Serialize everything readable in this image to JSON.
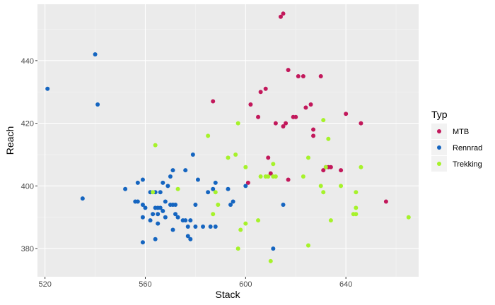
{
  "chart_data": {
    "type": "scatter",
    "title": "",
    "xlabel": "Stack",
    "ylabel": "Reach",
    "xlim": [
      517,
      669
    ],
    "ylim": [
      371,
      458
    ],
    "x_ticks": [
      520,
      560,
      600,
      640
    ],
    "y_ticks": [
      380,
      400,
      420,
      440
    ],
    "grid": true,
    "legend": {
      "title": "Typ",
      "position": "right"
    },
    "series": [
      {
        "name": "MTB",
        "color": "#C2185B",
        "points": [
          [
            614,
            454
          ],
          [
            615,
            455
          ],
          [
            617,
            437
          ],
          [
            621,
            435
          ],
          [
            623,
            435
          ],
          [
            630,
            435
          ],
          [
            606,
            430
          ],
          [
            608,
            431
          ],
          [
            624,
            425
          ],
          [
            626,
            426
          ],
          [
            602,
            426
          ],
          [
            587,
            427
          ],
          [
            640,
            423
          ],
          [
            619,
            422
          ],
          [
            620,
            422
          ],
          [
            605,
            422
          ],
          [
            612,
            420
          ],
          [
            616,
            420
          ],
          [
            615,
            419
          ],
          [
            646,
            420
          ],
          [
            627,
            418
          ],
          [
            627,
            416
          ],
          [
            609,
            409
          ],
          [
            632,
            406
          ],
          [
            633,
            406
          ],
          [
            634,
            406
          ],
          [
            638,
            405
          ],
          [
            631,
            405
          ],
          [
            610,
            404
          ],
          [
            617,
            402
          ],
          [
            601,
            401
          ],
          [
            656,
            395
          ]
        ]
      },
      {
        "name": "Rennrad",
        "color": "#1565C0",
        "points": [
          [
            521,
            431
          ],
          [
            540,
            442
          ],
          [
            541,
            426
          ],
          [
            535,
            396
          ],
          [
            552,
            399
          ],
          [
            556,
            395
          ],
          [
            557,
            401
          ],
          [
            557,
            395
          ],
          [
            559,
            402
          ],
          [
            559,
            394
          ],
          [
            560,
            393
          ],
          [
            559,
            390
          ],
          [
            559,
            382
          ],
          [
            562,
            389
          ],
          [
            562,
            398
          ],
          [
            563,
            391
          ],
          [
            564,
            393
          ],
          [
            564,
            383
          ],
          [
            564,
            398
          ],
          [
            565,
            393
          ],
          [
            565,
            391
          ],
          [
            565,
            388
          ],
          [
            566,
            393
          ],
          [
            566,
            398
          ],
          [
            567,
            401
          ],
          [
            567,
            392
          ],
          [
            568,
            395
          ],
          [
            568,
            390
          ],
          [
            569,
            400
          ],
          [
            570,
            394
          ],
          [
            570,
            403
          ],
          [
            571,
            405
          ],
          [
            571,
            394
          ],
          [
            571,
            386
          ],
          [
            572,
            391
          ],
          [
            572,
            394
          ],
          [
            573,
            390
          ],
          [
            575,
            389
          ],
          [
            576,
            405
          ],
          [
            576,
            389
          ],
          [
            577,
            384
          ],
          [
            577,
            387
          ],
          [
            578,
            383
          ],
          [
            578,
            389
          ],
          [
            579,
            410
          ],
          [
            580,
            394
          ],
          [
            580,
            387
          ],
          [
            581,
            402
          ],
          [
            583,
            387
          ],
          [
            585,
            398
          ],
          [
            586,
            387
          ],
          [
            587,
            399
          ],
          [
            588,
            401
          ],
          [
            588,
            387
          ],
          [
            593,
            399
          ],
          [
            594,
            394
          ],
          [
            595,
            395
          ],
          [
            600,
            400
          ],
          [
            611,
            380
          ],
          [
            615,
            394
          ]
        ]
      },
      {
        "name": "Trekking",
        "color": "#A6F22A",
        "points": [
          [
            563,
            398
          ],
          [
            564,
            413
          ],
          [
            573,
            399
          ],
          [
            585,
            416
          ],
          [
            587,
            391
          ],
          [
            588,
            398
          ],
          [
            589,
            394
          ],
          [
            593,
            409
          ],
          [
            596,
            410
          ],
          [
            597,
            420
          ],
          [
            597,
            380
          ],
          [
            598,
            386
          ],
          [
            600,
            406
          ],
          [
            600,
            388
          ],
          [
            605,
            389
          ],
          [
            606,
            403
          ],
          [
            608,
            403
          ],
          [
            609,
            403
          ],
          [
            610,
            376
          ],
          [
            611,
            407
          ],
          [
            611,
            403
          ],
          [
            612,
            403
          ],
          [
            623,
            403
          ],
          [
            625,
            409
          ],
          [
            625,
            381
          ],
          [
            630,
            400
          ],
          [
            631,
            421
          ],
          [
            631,
            398
          ],
          [
            632,
            406
          ],
          [
            633,
            415
          ],
          [
            634,
            389
          ],
          [
            638,
            400
          ],
          [
            643,
            391
          ],
          [
            644,
            391
          ],
          [
            644,
            398
          ],
          [
            644,
            393
          ],
          [
            646,
            406
          ],
          [
            665,
            390
          ]
        ]
      }
    ]
  }
}
